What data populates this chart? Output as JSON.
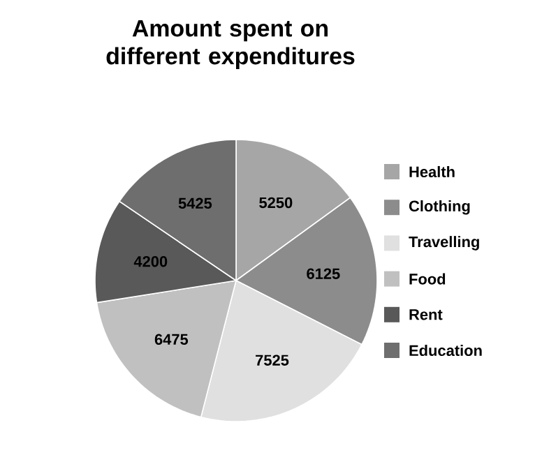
{
  "chart_data": {
    "type": "pie",
    "title": "Amount spent on different expenditures",
    "categories": [
      "Health",
      "Clothing",
      "Travelling",
      "Food",
      "Rent",
      "Education"
    ],
    "values": [
      5250,
      6125,
      7525,
      6475,
      4200,
      5425
    ],
    "colors": [
      "#a6a6a6",
      "#8c8c8c",
      "#e0e0e0",
      "#c0c0c0",
      "#595959",
      "#6e6e6e"
    ],
    "data_labels": true,
    "legend": "right"
  }
}
